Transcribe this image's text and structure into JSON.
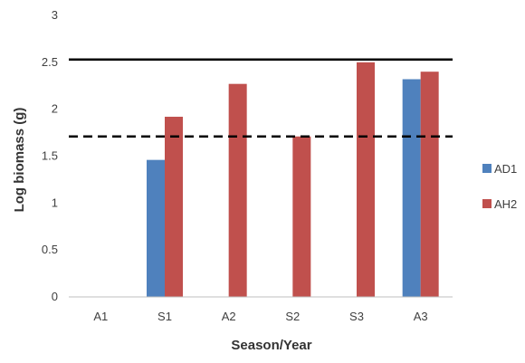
{
  "chart_data": {
    "type": "bar",
    "title": "",
    "xlabel": "Season/Year",
    "ylabel": "Log biomass (g)",
    "categories": [
      "A1",
      "S1",
      "A2",
      "S2",
      "S3",
      "A3"
    ],
    "ylim": [
      0,
      3
    ],
    "yticks": [
      0,
      0.5,
      1,
      1.5,
      2,
      2.5,
      3
    ],
    "ytick_labels": [
      "0",
      "0.5",
      "1",
      "1.5",
      "2",
      "2.5",
      "3"
    ],
    "grid": false,
    "legend_position": "right",
    "series": [
      {
        "name": "AD1",
        "color": "#4F81BD",
        "values": [
          null,
          1.46,
          null,
          null,
          null,
          2.32
        ]
      },
      {
        "name": "AH2",
        "color": "#C0504D",
        "values": [
          null,
          1.92,
          2.27,
          1.71,
          2.5,
          2.4
        ]
      }
    ],
    "reference_lines": [
      {
        "style": "solid",
        "value": 2.53,
        "color": "#000000"
      },
      {
        "style": "dashed",
        "value": 1.71,
        "color": "#000000"
      }
    ]
  }
}
